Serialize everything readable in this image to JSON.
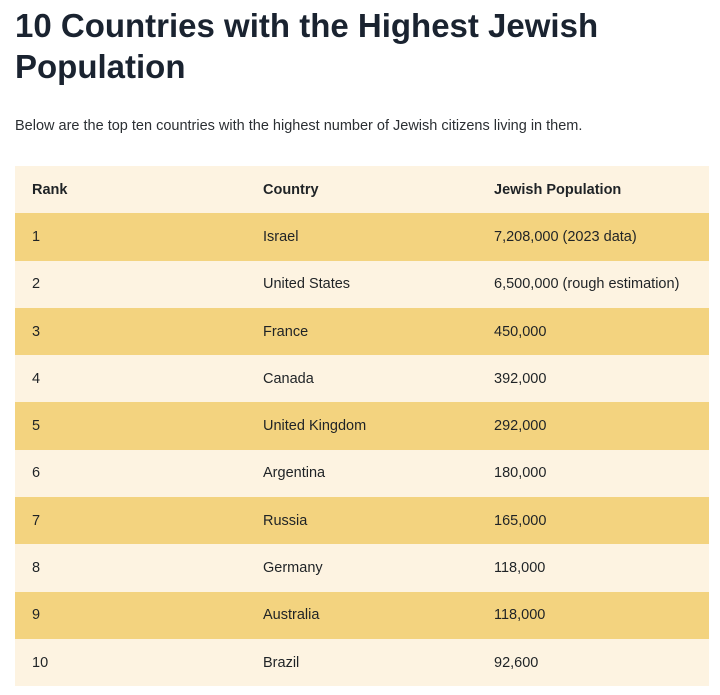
{
  "title": "10 Countries with the Highest Jewish Population",
  "intro": "Below are the top ten countries with the highest number of Jewish citizens living in them.",
  "table": {
    "headers": [
      "Rank",
      "Country",
      "Jewish Population"
    ],
    "rows": [
      [
        "1",
        "Israel",
        "7,208,000 (2023 data)"
      ],
      [
        "2",
        "United States",
        "6,500,000 (rough estimation)"
      ],
      [
        "3",
        "France",
        "450,000"
      ],
      [
        "4",
        "Canada",
        "392,000"
      ],
      [
        "5",
        "United Kingdom",
        "292,000"
      ],
      [
        "6",
        "Argentina",
        "180,000"
      ],
      [
        "7",
        "Russia",
        "165,000"
      ],
      [
        "8",
        "Germany",
        "118,000"
      ],
      [
        "9",
        "Australia",
        "118,000"
      ],
      [
        "10",
        "Brazil",
        "92,600"
      ]
    ]
  },
  "colors": {
    "header_row": "#fdf3e1",
    "odd_row": "#f3d37f",
    "even_row": "#fdf3e1"
  }
}
